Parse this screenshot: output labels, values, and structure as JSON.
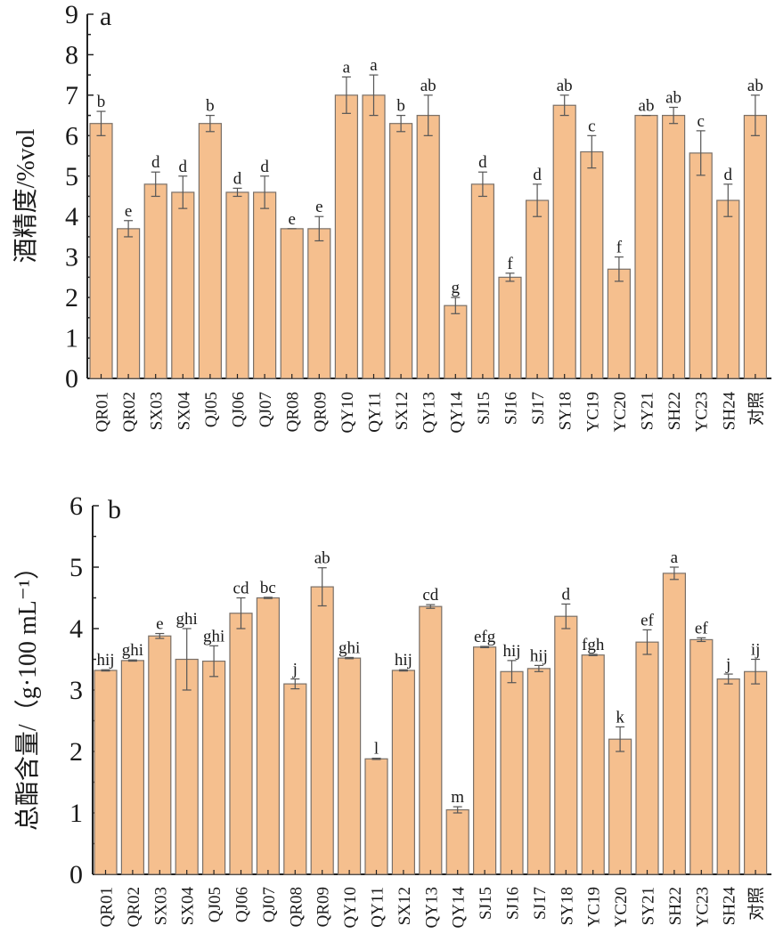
{
  "colors": {
    "bar_fill": "#f5bf8e",
    "bar_stroke": "#7a7068",
    "axis": "#222222",
    "error": "#555555"
  },
  "chart_data": [
    {
      "type": "bar",
      "panel": "a",
      "title": "",
      "xlabel": "",
      "ylabel": "酒精度/%vol",
      "ylim": [
        0,
        9
      ],
      "yticks": [
        "0",
        "1",
        "2",
        "3",
        "4",
        "5",
        "6",
        "7",
        "8",
        "9"
      ],
      "grid": false,
      "categories": [
        "QR01",
        "QR02",
        "SX03",
        "SX04",
        "QJ05",
        "QJ06",
        "QJ07",
        "QR08",
        "QR09",
        "QY10",
        "QY11",
        "SX12",
        "QY13",
        "QY14",
        "SJ15",
        "SJ16",
        "SJ17",
        "SY18",
        "YC19",
        "YC20",
        "SY21",
        "SH22",
        "YC23",
        "SH24",
        "对照"
      ],
      "values": [
        6.3,
        3.7,
        4.8,
        4.6,
        6.3,
        4.6,
        4.6,
        3.7,
        3.7,
        7.0,
        7.0,
        6.3,
        6.5,
        1.8,
        4.8,
        2.5,
        4.4,
        6.75,
        5.6,
        2.7,
        6.5,
        6.5,
        5.57,
        4.4,
        6.5
      ],
      "errors": [
        0.3,
        0.2,
        0.3,
        0.4,
        0.2,
        0.1,
        0.4,
        0.0,
        0.3,
        0.45,
        0.5,
        0.2,
        0.5,
        0.2,
        0.3,
        0.1,
        0.4,
        0.25,
        0.4,
        0.3,
        0.0,
        0.2,
        0.55,
        0.4,
        0.5
      ],
      "significance": [
        "b",
        "e",
        "d",
        "d",
        "b",
        "d",
        "d",
        "e",
        "e",
        "a",
        "a",
        "b",
        "ab",
        "g",
        "d",
        "f",
        "d",
        "ab",
        "c",
        "f",
        "ab",
        "ab",
        "c",
        "d",
        "ab"
      ]
    },
    {
      "type": "bar",
      "panel": "b",
      "title": "",
      "xlabel": "",
      "ylabel": "总酯含量/（g·100 mL⁻¹）",
      "ylim": [
        0,
        6
      ],
      "yticks": [
        "0",
        "1",
        "2",
        "3",
        "4",
        "5",
        "6"
      ],
      "grid": false,
      "categories": [
        "QR01",
        "QR02",
        "SX03",
        "SX04",
        "QJ05",
        "QJ06",
        "QJ07",
        "QR08",
        "QR09",
        "QY10",
        "QY11",
        "SX12",
        "QY13",
        "QY14",
        "SJ15",
        "SJ16",
        "SJ17",
        "SY18",
        "YC19",
        "YC20",
        "SY21",
        "SH22",
        "YC23",
        "SH24",
        "对照"
      ],
      "values": [
        3.32,
        3.48,
        3.88,
        3.5,
        3.47,
        4.25,
        4.5,
        3.1,
        4.68,
        3.52,
        1.88,
        3.32,
        4.36,
        1.05,
        3.7,
        3.3,
        3.35,
        4.2,
        3.57,
        2.2,
        3.78,
        4.9,
        3.82,
        3.18,
        3.3
      ],
      "errors": [
        0.01,
        0.01,
        0.04,
        0.5,
        0.25,
        0.25,
        0.01,
        0.08,
        0.31,
        0.01,
        0.01,
        0.01,
        0.03,
        0.05,
        0.01,
        0.18,
        0.05,
        0.2,
        0.01,
        0.2,
        0.2,
        0.1,
        0.03,
        0.08,
        0.2
      ],
      "significance": [
        "hij",
        "ghi",
        "e",
        "ghi",
        "ghi",
        "cd",
        "bc",
        "j",
        "ab",
        "ghi",
        "l",
        "hij",
        "cd",
        "m",
        "efg",
        "hij",
        "hij",
        "d",
        "fgh",
        "k",
        "ef",
        "a",
        "ef",
        "j",
        "ij"
      ]
    }
  ]
}
